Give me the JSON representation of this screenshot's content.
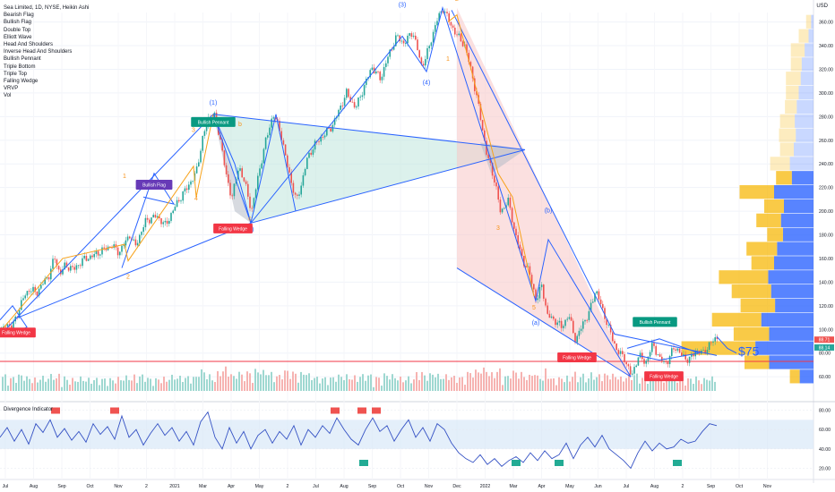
{
  "header": {
    "symbol_line": "Sea Limited, 1D, NYSE, Heikin Ashi",
    "currency": "USD"
  },
  "indicators": [
    "Bearish Flag",
    "Bullish Flag",
    "Double Top",
    "Elliott Wave",
    "Head And Shoulders",
    "Inverse Head And Shoulders",
    "Bullish Pennant",
    "Triple Bottom",
    "Triple Top",
    "Falling Wedge",
    "VRVP",
    "Vol"
  ],
  "oscillator_title": "Divergence Indicator",
  "colors": {
    "up": "#26a69a",
    "down": "#ef5350",
    "pattern_line": "#2962ff",
    "wave_line": "#f7a21b",
    "teal_fill": "#bfe6dd",
    "pink_fill": "#f8c7c7",
    "support": "#f23645",
    "osc_line": "#3552c4",
    "osc_band": "#d8e8f8"
  },
  "chart_data": {
    "type": "candlestick",
    "price_axis": {
      "ticks": [
        60,
        80,
        100,
        120,
        140,
        160,
        180,
        200,
        220,
        240,
        260,
        280,
        300,
        320,
        340,
        360
      ],
      "ylim": [
        48,
        368
      ]
    },
    "time_axis": {
      "labels": [
        "Jul",
        "Aug",
        "Sep",
        "Oct",
        "Nov",
        "2",
        "2021",
        "Mar",
        "Apr",
        "May",
        "2",
        "Jul",
        "Aug",
        "Sep",
        "Oct",
        "Nov",
        "Dec",
        "2022",
        "Mar",
        "Apr",
        "May",
        "Jun",
        "Jul",
        "Aug",
        "2",
        "Sep",
        "Oct",
        "Nov"
      ]
    },
    "price_path": [
      [
        0,
        95
      ],
      [
        6,
        106
      ],
      [
        12,
        101
      ],
      [
        18,
        112
      ],
      [
        26,
        128
      ],
      [
        32,
        134
      ],
      [
        40,
        131
      ],
      [
        48,
        140
      ],
      [
        54,
        146
      ],
      [
        60,
        161
      ],
      [
        66,
        147
      ],
      [
        72,
        154
      ],
      [
        82,
        151
      ],
      [
        92,
        159
      ],
      [
        102,
        162
      ],
      [
        114,
        167
      ],
      [
        124,
        171
      ],
      [
        132,
        165
      ],
      [
        144,
        180
      ],
      [
        150,
        170
      ],
      [
        162,
        192
      ],
      [
        174,
        196
      ],
      [
        184,
        188
      ],
      [
        196,
        206
      ],
      [
        208,
        220
      ],
      [
        218,
        232
      ],
      [
        226,
        264
      ],
      [
        232,
        278
      ],
      [
        238,
        282
      ],
      [
        246,
        258
      ],
      [
        252,
        228
      ],
      [
        258,
        212
      ],
      [
        266,
        238
      ],
      [
        272,
        225
      ],
      [
        280,
        200
      ],
      [
        288,
        232
      ],
      [
        296,
        260
      ],
      [
        304,
        282
      ],
      [
        312,
        268
      ],
      [
        320,
        238
      ],
      [
        330,
        208
      ],
      [
        336,
        224
      ],
      [
        342,
        244
      ],
      [
        350,
        256
      ],
      [
        360,
        264
      ],
      [
        370,
        272
      ],
      [
        378,
        286
      ],
      [
        386,
        300
      ],
      [
        396,
        287
      ],
      [
        406,
        306
      ],
      [
        414,
        322
      ],
      [
        424,
        312
      ],
      [
        432,
        330
      ],
      [
        442,
        348
      ],
      [
        450,
        342
      ],
      [
        460,
        352
      ],
      [
        470,
        322
      ],
      [
        478,
        338
      ],
      [
        486,
        360
      ],
      [
        494,
        372
      ],
      [
        502,
        358
      ],
      [
        510,
        348
      ],
      [
        518,
        340
      ],
      [
        526,
        316
      ],
      [
        534,
        286
      ],
      [
        542,
        250
      ],
      [
        552,
        224
      ],
      [
        558,
        198
      ],
      [
        566,
        210
      ],
      [
        574,
        182
      ],
      [
        582,
        160
      ],
      [
        590,
        148
      ],
      [
        598,
        124
      ],
      [
        604,
        138
      ],
      [
        610,
        112
      ],
      [
        618,
        108
      ],
      [
        626,
        102
      ],
      [
        634,
        112
      ],
      [
        642,
        90
      ],
      [
        650,
        106
      ],
      [
        656,
        112
      ],
      [
        664,
        134
      ],
      [
        672,
        116
      ],
      [
        680,
        98
      ],
      [
        688,
        82
      ],
      [
        696,
        76
      ],
      [
        704,
        60
      ],
      [
        712,
        78
      ],
      [
        720,
        72
      ],
      [
        728,
        88
      ],
      [
        736,
        74
      ],
      [
        744,
        72
      ],
      [
        752,
        86
      ],
      [
        760,
        78
      ],
      [
        768,
        74
      ],
      [
        776,
        82
      ],
      [
        784,
        80
      ],
      [
        792,
        88
      ],
      [
        800,
        94
      ]
    ],
    "key_levels": {
      "support_price": 73,
      "current_prices": [
        "88.71",
        "88.14"
      ],
      "target_text": "$75"
    },
    "elliott_labels": [
      {
        "text": "(1)",
        "x": 238,
        "y": 290,
        "color": "blue"
      },
      {
        "text": "(2)",
        "x": 279,
        "y": 183,
        "color": "blue"
      },
      {
        "text": "(3)",
        "x": 449,
        "y": 373,
        "color": "blue"
      },
      {
        "text": "(4)",
        "x": 476,
        "y": 307,
        "color": "blue"
      },
      {
        "text": "(a)",
        "x": 598,
        "y": 104,
        "color": "blue"
      },
      {
        "text": "(b)",
        "x": 612,
        "y": 199,
        "color": "blue"
      },
      {
        "text": "1",
        "x": 139,
        "y": 228,
        "color": "orange"
      },
      {
        "text": "2",
        "x": 143,
        "y": 143,
        "color": "orange"
      },
      {
        "text": "3",
        "x": 216,
        "y": 267,
        "color": "orange"
      },
      {
        "text": "4",
        "x": 219,
        "y": 209,
        "color": "orange"
      },
      {
        "text": "b",
        "x": 268,
        "y": 272,
        "color": "orange"
      },
      {
        "text": "c",
        "x": 279,
        "y": 192,
        "color": "orange"
      },
      {
        "text": "1",
        "x": 500,
        "y": 327,
        "color": "orange"
      },
      {
        "text": "2",
        "x": 510,
        "y": 378,
        "color": "orange"
      },
      {
        "text": "3",
        "x": 556,
        "y": 184,
        "color": "orange"
      },
      {
        "text": "5",
        "x": 596,
        "y": 117,
        "color": "orange"
      }
    ],
    "pattern_tags": [
      {
        "text": "Falling Wedge",
        "x": 18,
        "y": 97,
        "color": "#f23645"
      },
      {
        "text": "Bullish Flag",
        "x": 172,
        "y": 222,
        "color": "#673ab7"
      },
      {
        "text": "Bullish Pennant",
        "x": 238,
        "y": 275,
        "color": "#089981"
      },
      {
        "text": "Falling Wedge",
        "x": 260,
        "y": 185,
        "color": "#f23645"
      },
      {
        "text": "Bullish Pennant",
        "x": 731,
        "y": 106,
        "color": "#089981"
      },
      {
        "text": "Falling Wedge",
        "x": 644,
        "y": 76,
        "color": "#f23645"
      },
      {
        "text": "Falling Wedge",
        "x": 741,
        "y": 60,
        "color": "#f23645"
      }
    ],
    "volume_profile": [
      {
        "price": 360,
        "up": 10,
        "down": 5
      },
      {
        "price": 348,
        "up": 20,
        "down": 10
      },
      {
        "price": 336,
        "up": 28,
        "down": 18
      },
      {
        "price": 324,
        "up": 22,
        "down": 24
      },
      {
        "price": 312,
        "up": 30,
        "down": 26
      },
      {
        "price": 300,
        "up": 26,
        "down": 30
      },
      {
        "price": 288,
        "up": 24,
        "down": 34
      },
      {
        "price": 276,
        "up": 30,
        "down": 38
      },
      {
        "price": 264,
        "up": 34,
        "down": 36
      },
      {
        "price": 252,
        "up": 28,
        "down": 40
      },
      {
        "price": 240,
        "up": 40,
        "down": 48
      },
      {
        "price": 228,
        "up": 32,
        "down": 44
      },
      {
        "price": 216,
        "up": 70,
        "down": 80
      },
      {
        "price": 204,
        "up": 40,
        "down": 60
      },
      {
        "price": 192,
        "up": 50,
        "down": 66
      },
      {
        "price": 180,
        "up": 32,
        "down": 62
      },
      {
        "price": 168,
        "up": 62,
        "down": 74
      },
      {
        "price": 156,
        "up": 46,
        "down": 80
      },
      {
        "price": 144,
        "up": 100,
        "down": 92
      },
      {
        "price": 132,
        "up": 80,
        "down": 86
      },
      {
        "price": 120,
        "up": 70,
        "down": 78
      },
      {
        "price": 108,
        "up": 100,
        "down": 106
      },
      {
        "price": 96,
        "up": 72,
        "down": 90
      },
      {
        "price": 84,
        "up": 150,
        "down": 118
      },
      {
        "price": 72,
        "up": 50,
        "down": 90
      },
      {
        "price": 60,
        "up": 20,
        "down": 28
      }
    ],
    "oscillator": {
      "ticks": [
        20,
        40,
        60,
        80
      ],
      "ylim": [
        14,
        86
      ],
      "band": [
        40,
        70
      ],
      "path": [
        [
          0,
          52
        ],
        [
          8,
          62
        ],
        [
          16,
          48
        ],
        [
          24,
          60
        ],
        [
          32,
          45
        ],
        [
          40,
          66
        ],
        [
          48,
          57
        ],
        [
          56,
          70
        ],
        [
          64,
          52
        ],
        [
          72,
          61
        ],
        [
          80,
          49
        ],
        [
          88,
          58
        ],
        [
          96,
          47
        ],
        [
          104,
          66
        ],
        [
          112,
          55
        ],
        [
          120,
          63
        ],
        [
          128,
          50
        ],
        [
          136,
          74
        ],
        [
          144,
          52
        ],
        [
          152,
          60
        ],
        [
          160,
          44
        ],
        [
          168,
          56
        ],
        [
          176,
          66
        ],
        [
          184,
          54
        ],
        [
          192,
          62
        ],
        [
          200,
          48
        ],
        [
          208,
          58
        ],
        [
          216,
          44
        ],
        [
          224,
          68
        ],
        [
          232,
          78
        ],
        [
          240,
          52
        ],
        [
          248,
          40
        ],
        [
          256,
          62
        ],
        [
          264,
          46
        ],
        [
          272,
          58
        ],
        [
          280,
          40
        ],
        [
          288,
          54
        ],
        [
          296,
          60
        ],
        [
          304,
          46
        ],
        [
          312,
          58
        ],
        [
          320,
          50
        ],
        [
          328,
          64
        ],
        [
          336,
          44
        ],
        [
          344,
          60
        ],
        [
          352,
          52
        ],
        [
          360,
          64
        ],
        [
          368,
          56
        ],
        [
          376,
          72
        ],
        [
          384,
          60
        ],
        [
          392,
          50
        ],
        [
          400,
          44
        ],
        [
          408,
          60
        ],
        [
          416,
          72
        ],
        [
          424,
          58
        ],
        [
          432,
          64
        ],
        [
          440,
          48
        ],
        [
          448,
          60
        ],
        [
          456,
          70
        ],
        [
          464,
          52
        ],
        [
          472,
          62
        ],
        [
          480,
          48
        ],
        [
          488,
          66
        ],
        [
          496,
          60
        ],
        [
          504,
          46
        ],
        [
          512,
          36
        ],
        [
          520,
          30
        ],
        [
          528,
          26
        ],
        [
          536,
          34
        ],
        [
          544,
          24
        ],
        [
          552,
          30
        ],
        [
          560,
          22
        ],
        [
          568,
          28
        ],
        [
          576,
          32
        ],
        [
          584,
          26
        ],
        [
          592,
          36
        ],
        [
          600,
          28
        ],
        [
          608,
          38
        ],
        [
          616,
          30
        ],
        [
          624,
          34
        ],
        [
          632,
          46
        ],
        [
          640,
          30
        ],
        [
          648,
          44
        ],
        [
          656,
          52
        ],
        [
          664,
          42
        ],
        [
          672,
          54
        ],
        [
          680,
          40
        ],
        [
          688,
          34
        ],
        [
          696,
          28
        ],
        [
          704,
          20
        ],
        [
          712,
          36
        ],
        [
          720,
          48
        ],
        [
          728,
          38
        ],
        [
          736,
          46
        ],
        [
          744,
          40
        ],
        [
          752,
          42
        ],
        [
          760,
          50
        ],
        [
          768,
          46
        ],
        [
          776,
          48
        ],
        [
          784,
          58
        ],
        [
          792,
          66
        ],
        [
          800,
          64
        ]
      ],
      "bear_tags": [
        62,
        128,
        374,
        404,
        420
      ],
      "bull_tags": [
        406,
        576,
        624,
        756
      ]
    }
  }
}
